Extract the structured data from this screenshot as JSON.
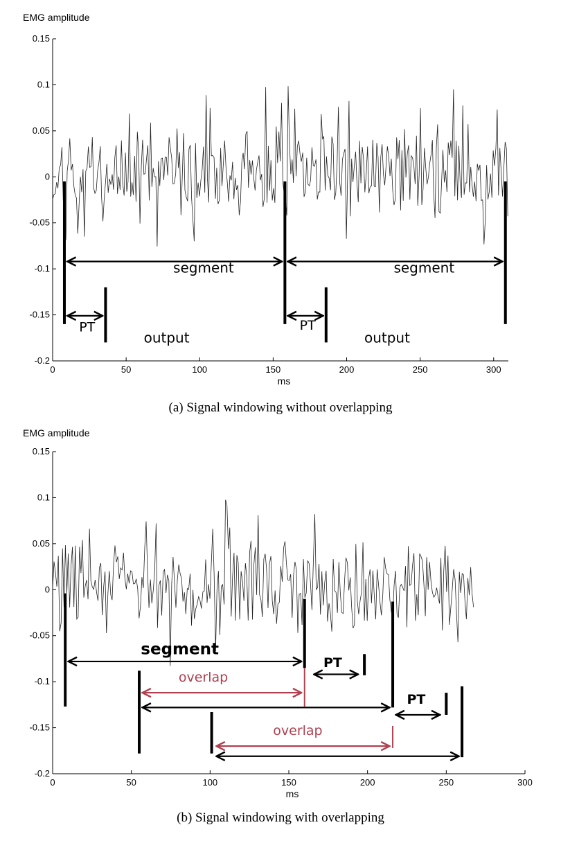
{
  "chart_data": [
    {
      "type": "line",
      "caption": "(a)  Signal windowing without overlapping",
      "ylabel": "EMG amplitude",
      "xlabel": "ms",
      "xlim": [
        0,
        310
      ],
      "ylim": [
        -0.2,
        0.15
      ],
      "xticks": [
        "0",
        "50",
        "100",
        "150",
        "200",
        "250",
        "300"
      ],
      "yticks": [
        "0.15",
        "0.1",
        "0.05",
        "0",
        "-0.05",
        "-0.1",
        "-0.15",
        "-0.2"
      ],
      "signal": {
        "x_start": 0,
        "x_end": 310,
        "seed": 11
      },
      "markers": [
        {
          "x": 8,
          "y1": -0.005,
          "y2": -0.16,
          "weight": "bold"
        },
        {
          "x": 36,
          "y1": -0.12,
          "y2": -0.18,
          "weight": "bold"
        },
        {
          "x": 158,
          "y1": -0.005,
          "y2": -0.16,
          "weight": "bold"
        },
        {
          "x": 186,
          "y1": -0.12,
          "y2": -0.18,
          "weight": "bold"
        },
        {
          "x": 308,
          "y1": -0.005,
          "y2": -0.16,
          "weight": "bold"
        }
      ],
      "arrows": [
        {
          "x1": 10,
          "x2": 156,
          "y": -0.092,
          "color": "#000000"
        },
        {
          "x1": 10,
          "x2": 34,
          "y": -0.151,
          "color": "#000000"
        },
        {
          "x1": 160,
          "x2": 306,
          "y": -0.092,
          "color": "#000000"
        },
        {
          "x1": 160,
          "x2": 184,
          "y": -0.151,
          "color": "#000000"
        }
      ],
      "annotations": [
        {
          "text": "segment",
          "x": 82,
          "y": -0.104,
          "color": "#000000",
          "bold": false,
          "size": 20
        },
        {
          "text": "PT",
          "x": 18,
          "y": -0.168,
          "color": "#000000",
          "bold": false,
          "size": 19
        },
        {
          "text": "output",
          "x": 62,
          "y": -0.18,
          "color": "#000000",
          "bold": false,
          "size": 20
        },
        {
          "text": "segment",
          "x": 232,
          "y": -0.104,
          "color": "#000000",
          "bold": false,
          "size": 20
        },
        {
          "text": "PT",
          "x": 168,
          "y": -0.166,
          "color": "#000000",
          "bold": false,
          "size": 19
        },
        {
          "text": "output",
          "x": 212,
          "y": -0.18,
          "color": "#000000",
          "bold": false,
          "size": 20
        }
      ]
    },
    {
      "type": "line",
      "caption": "(b)  Signal windowing with overlapping",
      "ylabel": "EMG amplitude",
      "xlabel": "ms",
      "xlim": [
        0,
        300
      ],
      "ylim": [
        -0.2,
        0.15
      ],
      "xticks": [
        "0",
        "50",
        "100",
        "150",
        "200",
        "250",
        "300"
      ],
      "yticks": [
        "0.15",
        "0.1",
        "0.05",
        "0",
        "-0.05",
        "-0.1",
        "-0.15",
        "-0.2"
      ],
      "signal": {
        "x_start": 0,
        "x_end": 268,
        "seed": 29
      },
      "markers": [
        {
          "x": 8,
          "y1": -0.004,
          "y2": -0.127,
          "weight": "bold"
        },
        {
          "x": 55,
          "y1": -0.088,
          "y2": -0.178,
          "weight": "bold"
        },
        {
          "x": 101,
          "y1": -0.133,
          "y2": -0.178,
          "weight": "bold"
        },
        {
          "x": 160,
          "y1": -0.01,
          "y2": -0.085,
          "weight": "bold"
        },
        {
          "x": 198,
          "y1": -0.07,
          "y2": -0.093,
          "weight": "bold"
        },
        {
          "x": 216,
          "y1": -0.013,
          "y2": -0.128,
          "weight": "bold"
        },
        {
          "x": 250,
          "y1": -0.112,
          "y2": -0.136,
          "weight": "bold"
        },
        {
          "x": 260,
          "y1": -0.105,
          "y2": -0.182,
          "weight": "bold"
        },
        {
          "x": 160,
          "y1": -0.085,
          "y2": -0.127,
          "weight": "thin",
          "color": "#b04050"
        },
        {
          "x": 216,
          "y1": -0.148,
          "y2": -0.172,
          "weight": "thin",
          "color": "#b04050"
        }
      ],
      "arrows": [
        {
          "x1": 10,
          "x2": 158,
          "y": -0.078,
          "color": "#000000"
        },
        {
          "x1": 166,
          "x2": 194,
          "y": -0.092,
          "color": "#000000"
        },
        {
          "x1": 57,
          "x2": 158,
          "y": -0.112,
          "color": "#b04050"
        },
        {
          "x1": 57,
          "x2": 214,
          "y": -0.128,
          "color": "#000000"
        },
        {
          "x1": 218,
          "x2": 246,
          "y": -0.136,
          "color": "#000000"
        },
        {
          "x1": 104,
          "x2": 214,
          "y": -0.17,
          "color": "#b04050"
        },
        {
          "x1": 104,
          "x2": 258,
          "y": -0.181,
          "color": "#000000"
        }
      ],
      "annotations": [
        {
          "text": "segment",
          "x": 56,
          "y": -0.07,
          "color": "#000000",
          "bold": true,
          "size": 23
        },
        {
          "text": "overlap",
          "x": 80,
          "y": -0.1,
          "color": "#b04050",
          "bold": false,
          "size": 19
        },
        {
          "text": "PT",
          "x": 172,
          "y": -0.084,
          "color": "#000000",
          "bold": true,
          "size": 19
        },
        {
          "text": "PT",
          "x": 225,
          "y": -0.124,
          "color": "#000000",
          "bold": true,
          "size": 19
        },
        {
          "text": "overlap",
          "x": 140,
          "y": -0.158,
          "color": "#b04050",
          "bold": false,
          "size": 19
        }
      ]
    }
  ]
}
